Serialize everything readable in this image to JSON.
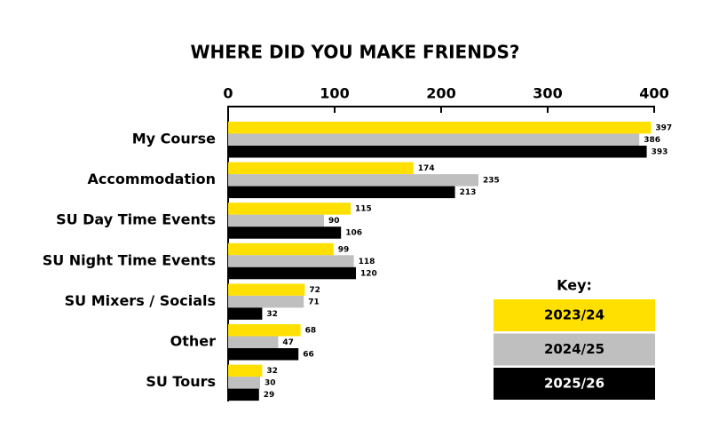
{
  "chart_data": {
    "type": "hbar",
    "title": "WHERE DID YOU MAKE FRIENDS?",
    "categories": [
      "My Course",
      "Accommodation",
      "SU Day Time Events",
      "SU Night Time Events",
      "SU Mixers / Socials",
      "Other",
      "SU Tours"
    ],
    "series": [
      {
        "name": "2023/24",
        "color": "#ffe000",
        "values": [
          397,
          174,
          115,
          99,
          72,
          68,
          32
        ]
      },
      {
        "name": "2024/25",
        "color": "#bfbfbf",
        "values": [
          386,
          235,
          90,
          118,
          71,
          47,
          30
        ]
      },
      {
        "name": "2025/26",
        "color": "#000000",
        "values": [
          393,
          213,
          106,
          120,
          32,
          66,
          29
        ]
      }
    ],
    "xlim": [
      0,
      400
    ],
    "xticks": [
      0,
      100,
      200,
      300,
      400
    ],
    "legend_title": "Key:",
    "legend_position": "lower right"
  }
}
